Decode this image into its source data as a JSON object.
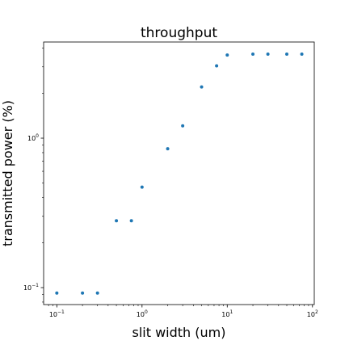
{
  "chart_data": {
    "type": "scatter",
    "title": "throughput",
    "xlabel": "slit width (um)",
    "ylabel": "transmitted power (%)",
    "x_scale": "log",
    "y_scale": "log",
    "xlim": [
      0.07,
      105
    ],
    "ylim": [
      0.077,
      4.4
    ],
    "grid": false,
    "x_ticks": [
      {
        "value": 0.1,
        "base": "10",
        "exp": "−1"
      },
      {
        "value": 1,
        "base": "10",
        "exp": "0"
      },
      {
        "value": 10,
        "base": "10",
        "exp": "1"
      },
      {
        "value": 100,
        "base": "10",
        "exp": "2"
      }
    ],
    "y_ticks": [
      {
        "value": 0.1,
        "base": "10",
        "exp": "−1"
      },
      {
        "value": 1,
        "base": "10",
        "exp": "0"
      }
    ],
    "marker_color": "#1f77b4",
    "series": [
      {
        "x": [
          0.1,
          0.2,
          0.3,
          0.5,
          0.75,
          1,
          2,
          3,
          5,
          7.5,
          10,
          20,
          30,
          50,
          75
        ],
        "y": [
          0.092,
          0.092,
          0.092,
          0.28,
          0.28,
          0.47,
          0.85,
          1.21,
          2.2,
          3.05,
          3.6,
          3.65,
          3.65,
          3.65,
          3.65
        ]
      }
    ]
  }
}
